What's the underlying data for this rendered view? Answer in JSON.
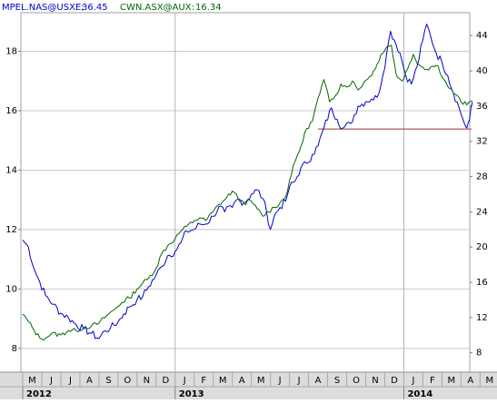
{
  "legend": {
    "s1_label": "MPEL.NAS@USXE;",
    "s1_value": "36.45",
    "s2_label": "CWN.ASX@AUX:",
    "s2_value": "16.34"
  },
  "colors": {
    "s1": "#0000cc",
    "s2": "#006600",
    "ref_line": "#993333",
    "grid": "#c8c8c8",
    "axis_bg": "#dcdcdc"
  },
  "chart_data": {
    "type": "line",
    "title": "",
    "grid": true,
    "legend_position": "top-left",
    "x_axis": {
      "month_labels": [
        "M",
        "J",
        "J",
        "A",
        "S",
        "O",
        "N",
        "D",
        "J",
        "F",
        "M",
        "A",
        "M",
        "J",
        "J",
        "A",
        "S",
        "O",
        "N",
        "D",
        "J",
        "F",
        "M",
        "A",
        "M"
      ],
      "year_labels": [
        "2012",
        "2013",
        "2014"
      ],
      "range_months": [
        0,
        23.65
      ]
    },
    "left_axis": {
      "series": "CWN.ASX@AUX",
      "range": [
        7.2,
        19.3
      ],
      "ticks": [
        8,
        10,
        12,
        14,
        16,
        18
      ]
    },
    "right_axis": {
      "series": "MPEL.NAS@USXE",
      "range": [
        5.8,
        46.6
      ],
      "ticks": [
        8,
        12,
        16,
        20,
        24,
        28,
        32,
        36,
        40,
        44
      ]
    },
    "reference_line": {
      "axis": "right",
      "value": 33.4,
      "x_range": [
        15.5,
        23.55
      ]
    },
    "series": [
      {
        "name": "MPEL.NAS@USXE",
        "axis": "right",
        "points": [
          [
            0,
            20.8
          ],
          [
            0.3,
            20.0
          ],
          [
            0.6,
            17.5
          ],
          [
            0.9,
            16.0
          ],
          [
            1.2,
            14.5
          ],
          [
            1.6,
            13.5
          ],
          [
            2.0,
            12.5
          ],
          [
            2.4,
            12.0
          ],
          [
            2.8,
            11.2
          ],
          [
            3.2,
            10.7
          ],
          [
            3.6,
            10.2
          ],
          [
            4.0,
            9.6
          ],
          [
            4.3,
            10.5
          ],
          [
            4.6,
            10.8
          ],
          [
            5.0,
            11.5
          ],
          [
            5.3,
            12.4
          ],
          [
            5.6,
            13.2
          ],
          [
            6.0,
            14.0
          ],
          [
            6.3,
            14.4
          ],
          [
            6.6,
            15.5
          ],
          [
            7.0,
            16.8
          ],
          [
            7.3,
            17.8
          ],
          [
            7.6,
            19.0
          ],
          [
            8.0,
            19.5
          ],
          [
            8.3,
            20.5
          ],
          [
            8.6,
            21.8
          ],
          [
            9.0,
            22.0
          ],
          [
            9.3,
            22.6
          ],
          [
            9.6,
            22.6
          ],
          [
            10.0,
            23.5
          ],
          [
            10.3,
            24.6
          ],
          [
            10.6,
            24.0
          ],
          [
            11.0,
            24.5
          ],
          [
            11.3,
            25.5
          ],
          [
            11.6,
            25.0
          ],
          [
            12.0,
            26.0
          ],
          [
            12.3,
            26.5
          ],
          [
            12.6,
            25.5
          ],
          [
            12.8,
            24.0
          ],
          [
            13.0,
            22.0
          ],
          [
            13.2,
            23.5
          ],
          [
            13.5,
            24.5
          ],
          [
            13.8,
            25.2
          ],
          [
            14.0,
            26.8
          ],
          [
            14.3,
            27.5
          ],
          [
            14.6,
            29.0
          ],
          [
            14.9,
            29.5
          ],
          [
            15.2,
            30.5
          ],
          [
            15.5,
            31.5
          ],
          [
            15.8,
            33.5
          ],
          [
            16.2,
            35.8
          ],
          [
            16.5,
            34.5
          ],
          [
            16.8,
            33.5
          ],
          [
            17.2,
            34.0
          ],
          [
            17.6,
            36.0
          ],
          [
            18.0,
            36.5
          ],
          [
            18.3,
            36.8
          ],
          [
            18.6,
            37.0
          ],
          [
            18.9,
            39.5
          ],
          [
            19.1,
            42.0
          ],
          [
            19.3,
            44.5
          ],
          [
            19.5,
            43.5
          ],
          [
            19.8,
            42.0
          ],
          [
            20.1,
            39.5
          ],
          [
            20.4,
            38.5
          ],
          [
            20.7,
            40.5
          ],
          [
            21.0,
            43.5
          ],
          [
            21.2,
            45.3
          ],
          [
            21.4,
            44.0
          ],
          [
            21.7,
            42.0
          ],
          [
            22.0,
            41.0
          ],
          [
            22.3,
            39.5
          ],
          [
            22.6,
            37.5
          ],
          [
            22.9,
            35.8
          ],
          [
            23.1,
            34.5
          ],
          [
            23.3,
            33.5
          ],
          [
            23.45,
            34.5
          ],
          [
            23.6,
            36.45
          ]
        ]
      },
      {
        "name": "CWN.ASX@AUX",
        "axis": "left",
        "points": [
          [
            0,
            9.15
          ],
          [
            0.3,
            8.9
          ],
          [
            0.6,
            8.6
          ],
          [
            0.9,
            8.35
          ],
          [
            1.2,
            8.35
          ],
          [
            1.5,
            8.5
          ],
          [
            2.0,
            8.45
          ],
          [
            2.4,
            8.6
          ],
          [
            2.8,
            8.6
          ],
          [
            3.2,
            8.7
          ],
          [
            3.6,
            8.75
          ],
          [
            4.0,
            8.85
          ],
          [
            4.4,
            9.1
          ],
          [
            4.8,
            9.3
          ],
          [
            5.2,
            9.55
          ],
          [
            5.6,
            9.7
          ],
          [
            6.0,
            10.0
          ],
          [
            6.3,
            10.2
          ],
          [
            6.6,
            10.35
          ],
          [
            7.0,
            10.7
          ],
          [
            7.3,
            11.2
          ],
          [
            7.6,
            11.45
          ],
          [
            8.0,
            11.7
          ],
          [
            8.3,
            11.95
          ],
          [
            8.6,
            12.1
          ],
          [
            9.0,
            12.3
          ],
          [
            9.3,
            12.4
          ],
          [
            9.6,
            12.3
          ],
          [
            10.0,
            12.6
          ],
          [
            10.3,
            12.85
          ],
          [
            10.6,
            13.0
          ],
          [
            11.0,
            13.3
          ],
          [
            11.3,
            13.05
          ],
          [
            11.6,
            12.9
          ],
          [
            12.0,
            12.95
          ],
          [
            12.3,
            12.7
          ],
          [
            12.6,
            12.45
          ],
          [
            12.9,
            12.6
          ],
          [
            13.2,
            12.75
          ],
          [
            13.5,
            12.9
          ],
          [
            13.8,
            13.1
          ],
          [
            14.0,
            13.65
          ],
          [
            14.3,
            14.3
          ],
          [
            14.6,
            14.8
          ],
          [
            14.9,
            15.4
          ],
          [
            15.2,
            15.65
          ],
          [
            15.4,
            16.2
          ],
          [
            15.6,
            16.6
          ],
          [
            15.8,
            17.05
          ],
          [
            16.1,
            16.3
          ],
          [
            16.4,
            16.5
          ],
          [
            16.7,
            16.9
          ],
          [
            17.0,
            16.8
          ],
          [
            17.3,
            17.0
          ],
          [
            17.6,
            16.7
          ],
          [
            17.9,
            16.95
          ],
          [
            18.2,
            17.15
          ],
          [
            18.5,
            17.4
          ],
          [
            18.8,
            17.9
          ],
          [
            19.1,
            18.15
          ],
          [
            19.35,
            18.2
          ],
          [
            19.6,
            17.2
          ],
          [
            19.9,
            17.0
          ],
          [
            20.2,
            17.4
          ],
          [
            20.5,
            17.9
          ],
          [
            20.8,
            17.55
          ],
          [
            21.2,
            17.4
          ],
          [
            21.5,
            17.5
          ],
          [
            21.8,
            17.5
          ],
          [
            22.1,
            17.05
          ],
          [
            22.4,
            16.75
          ],
          [
            22.7,
            16.55
          ],
          [
            23.0,
            16.3
          ],
          [
            23.3,
            16.2
          ],
          [
            23.6,
            16.34
          ]
        ]
      }
    ]
  }
}
